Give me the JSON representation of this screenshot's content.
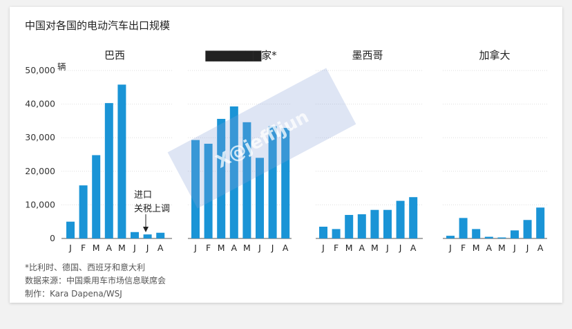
{
  "title": "中国对各国的电动汽车出口规模",
  "chart_data": {
    "type": "bar",
    "y_unit": "辆",
    "ylim": [
      0,
      50000
    ],
    "yticks": [
      "50,000",
      "40,000",
      "30,000",
      "20,000",
      "10,000",
      "0"
    ],
    "grid": true,
    "categories": [
      "J",
      "F",
      "M",
      "A",
      "M",
      "J",
      "J",
      "A"
    ],
    "panels": [
      {
        "title": "巴西",
        "values": [
          5000,
          15800,
          24800,
          40300,
          45800,
          1900,
          1200,
          1700
        ]
      },
      {
        "title": "▇▇▇▇▇▇▇家*",
        "values": [
          29300,
          28200,
          35600,
          39300,
          34600,
          24000,
          33400,
          32900
        ]
      },
      {
        "title": "墨西哥",
        "values": [
          3500,
          2800,
          7000,
          7200,
          8500,
          8500,
          11200,
          12300
        ]
      },
      {
        "title": "加拿大",
        "values": [
          800,
          6100,
          2800,
          500,
          300,
          2400,
          5500,
          9200
        ]
      }
    ],
    "annotation": {
      "line1": "进口",
      "line2": "关税上调"
    }
  },
  "footnotes": [
    "*比利时、德国、西班牙和意大利",
    "数据来源：中国乘用车市场信息联席会",
    "制作：Kara Dapena/WSJ"
  ],
  "watermark": "X@jeffljun"
}
